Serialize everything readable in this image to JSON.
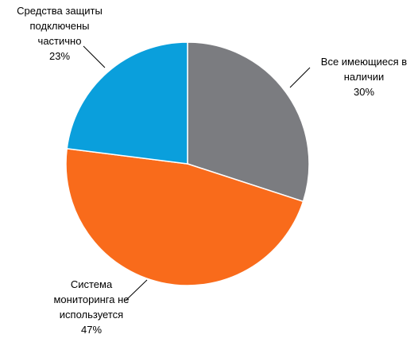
{
  "chart_data": {
    "type": "pie",
    "categories": [
      "Все имеющиеся в наличии",
      "Система мониторинга не используется",
      "Средства защиты подключены частично"
    ],
    "values": [
      30,
      47,
      23
    ],
    "value_labels": [
      "30%",
      "47%",
      "23%"
    ],
    "colors": [
      "#7b7c80",
      "#f96b1b",
      "#0a9fdc"
    ]
  }
}
